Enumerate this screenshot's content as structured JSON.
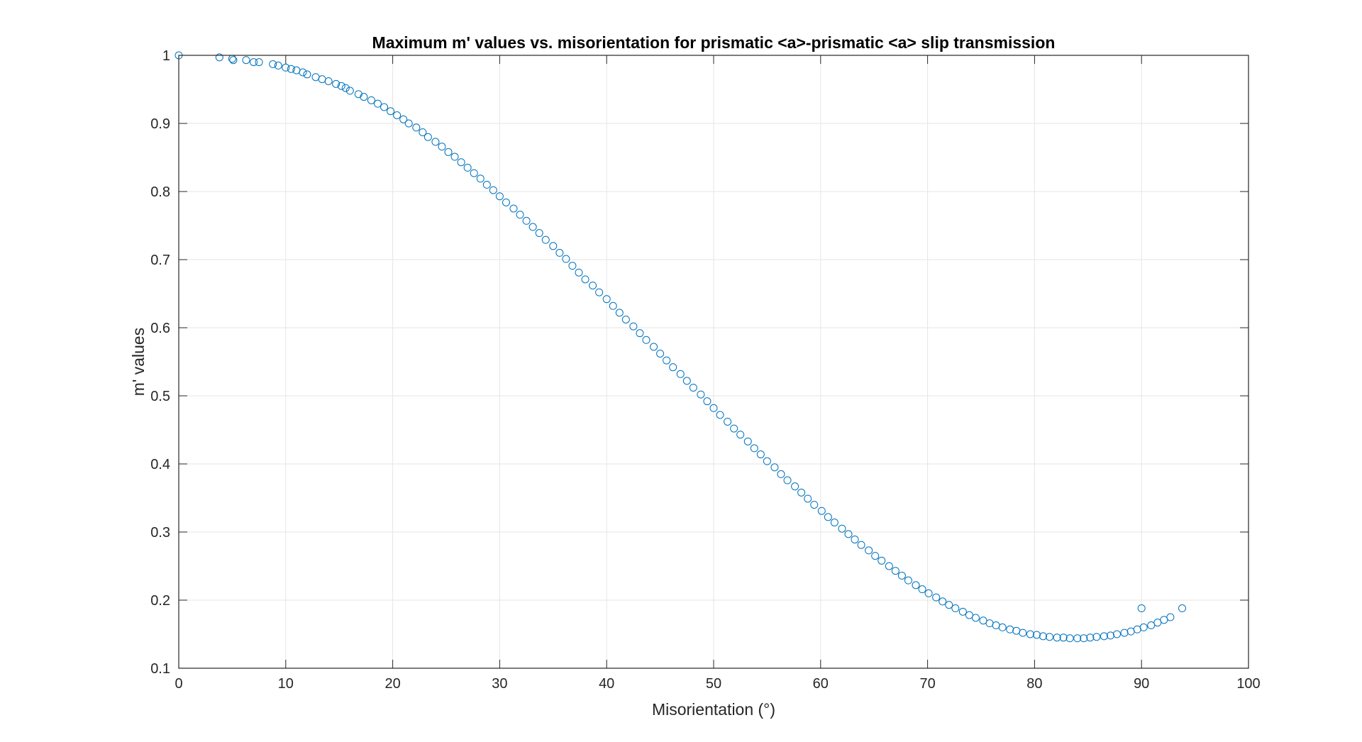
{
  "chart_data": {
    "type": "scatter",
    "title": "Maximum m' values vs. misorientation for prismatic <a>-prismatic <a> slip transmission",
    "xlabel": "Misorientation (°)",
    "ylabel": "m' values",
    "xlim": [
      0,
      100
    ],
    "ylim": [
      0.1,
      1
    ],
    "xticks": [
      "0",
      "10",
      "20",
      "30",
      "40",
      "50",
      "60",
      "70",
      "80",
      "90",
      "100"
    ],
    "yticks": [
      "0.1",
      "0.2",
      "0.3",
      "0.4",
      "0.5",
      "0.6",
      "0.7",
      "0.8",
      "0.9",
      "1"
    ],
    "grid": true,
    "marker": "open-circle",
    "marker_color": "#0072BD",
    "series": [
      {
        "x": [
          0,
          3.8,
          5,
          5.1,
          6.3,
          7,
          7.5,
          8.8,
          9.3,
          10,
          10.5,
          11,
          11.6,
          12,
          12.8,
          13.4,
          14,
          14.7,
          15.2,
          15.6,
          16,
          16.8,
          17.3,
          18,
          18.6,
          19.2,
          19.8,
          20.4,
          21,
          21.5,
          22.2,
          22.8,
          23.3,
          24,
          24.6,
          25.2,
          25.8,
          26.4,
          27,
          27.6,
          28.2,
          28.8,
          29.4,
          30,
          30.6,
          31.3,
          31.9,
          32.5,
          33.1,
          33.7,
          34.3,
          35,
          35.6,
          36.2,
          36.8,
          37.4,
          38,
          38.7,
          39.3,
          40,
          40.6,
          41.2,
          41.8,
          42.5,
          43.1,
          43.7,
          44.4,
          45,
          45.6,
          46.2,
          46.9,
          47.5,
          48.1,
          48.8,
          49.4,
          50,
          50.6,
          51.3,
          51.9,
          52.5,
          53.2,
          53.8,
          54.4,
          55,
          55.7,
          56.3,
          56.9,
          57.6,
          58.2,
          58.8,
          59.4,
          60.1,
          60.7,
          61.3,
          62,
          62.6,
          63.2,
          63.8,
          64.5,
          65.1,
          65.7,
          66.4,
          67,
          67.6,
          68.2,
          68.9,
          69.5,
          70.1,
          70.8,
          71.4,
          72,
          72.6,
          73.3,
          73.9,
          74.5,
          75.2,
          75.8,
          76.4,
          77,
          77.7,
          78.3,
          78.9,
          79.6,
          80.2,
          80.8,
          81.4,
          82.1,
          82.7,
          83.3,
          84,
          84.6,
          85.2,
          85.8,
          86.5,
          87.1,
          87.7,
          88.4,
          89,
          89.6,
          90.2,
          90.9,
          91.5,
          92.1,
          92.7,
          90,
          93.8
        ],
        "y": [
          1,
          0.997,
          0.995,
          0.993,
          0.993,
          0.99,
          0.99,
          0.987,
          0.985,
          0.982,
          0.98,
          0.978,
          0.975,
          0.972,
          0.968,
          0.965,
          0.962,
          0.958,
          0.955,
          0.952,
          0.948,
          0.943,
          0.939,
          0.934,
          0.929,
          0.924,
          0.918,
          0.912,
          0.906,
          0.9,
          0.894,
          0.887,
          0.88,
          0.873,
          0.866,
          0.858,
          0.851,
          0.843,
          0.835,
          0.827,
          0.819,
          0.81,
          0.802,
          0.793,
          0.784,
          0.775,
          0.766,
          0.757,
          0.748,
          0.739,
          0.729,
          0.72,
          0.71,
          0.701,
          0.691,
          0.681,
          0.671,
          0.662,
          0.652,
          0.642,
          0.632,
          0.622,
          0.612,
          0.602,
          0.592,
          0.582,
          0.572,
          0.562,
          0.552,
          0.542,
          0.532,
          0.522,
          0.512,
          0.502,
          0.492,
          0.482,
          0.472,
          0.462,
          0.452,
          0.443,
          0.433,
          0.423,
          0.414,
          0.404,
          0.395,
          0.385,
          0.376,
          0.367,
          0.358,
          0.349,
          0.34,
          0.331,
          0.322,
          0.314,
          0.305,
          0.297,
          0.289,
          0.281,
          0.273,
          0.265,
          0.258,
          0.25,
          0.243,
          0.236,
          0.229,
          0.222,
          0.216,
          0.21,
          0.204,
          0.198,
          0.193,
          0.188,
          0.183,
          0.178,
          0.174,
          0.17,
          0.166,
          0.163,
          0.16,
          0.157,
          0.155,
          0.152,
          0.15,
          0.149,
          0.147,
          0.146,
          0.145,
          0.145,
          0.144,
          0.144,
          0.144,
          0.145,
          0.146,
          0.147,
          0.148,
          0.15,
          0.152,
          0.154,
          0.157,
          0.16,
          0.163,
          0.167,
          0.171,
          0.175,
          0.188,
          0.188
        ]
      }
    ]
  }
}
